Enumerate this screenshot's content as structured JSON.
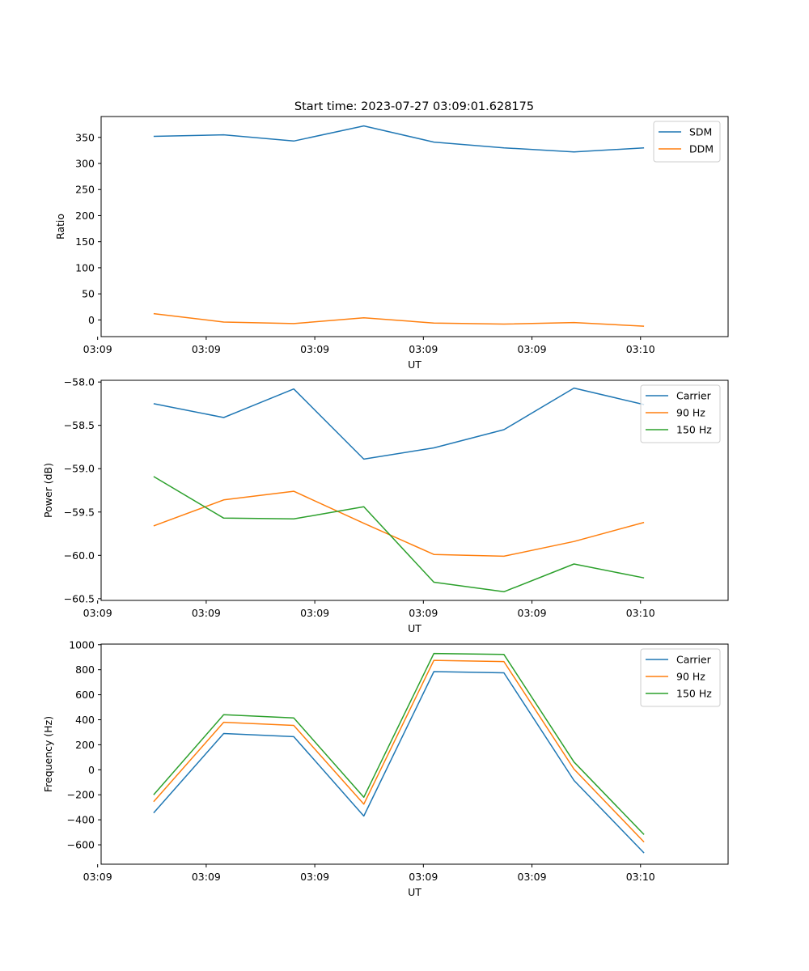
{
  "figure_title": "Start time: 2023-07-27 03:09:01.628175",
  "colors": {
    "c0": "#1f77b4",
    "c1": "#ff7f0e",
    "c2": "#2ca02c"
  },
  "chart_data": [
    {
      "type": "line",
      "title": "Start time: 2023-07-27 03:09:01.628175",
      "xlabel": "UT",
      "ylabel": "Ratio",
      "x": [
        1,
        2,
        3,
        4,
        5,
        6,
        7,
        8
      ],
      "xlim": [
        0.25,
        9.2
      ],
      "xticks": [
        {
          "v": 0.2,
          "label": "03:09"
        },
        {
          "v": 1.75,
          "label": "03:09"
        },
        {
          "v": 3.3,
          "label": "03:09"
        },
        {
          "v": 4.85,
          "label": "03:09"
        },
        {
          "v": 6.4,
          "label": "03:09"
        },
        {
          "v": 7.95,
          "label": "03:10"
        }
      ],
      "ylim": [
        -32,
        390
      ],
      "yticks": [
        {
          "v": 0,
          "label": "0"
        },
        {
          "v": 50,
          "label": "50"
        },
        {
          "v": 100,
          "label": "100"
        },
        {
          "v": 150,
          "label": "150"
        },
        {
          "v": 200,
          "label": "200"
        },
        {
          "v": 250,
          "label": "250"
        },
        {
          "v": 300,
          "label": "300"
        },
        {
          "v": 350,
          "label": "350"
        }
      ],
      "legend_position": "top-right",
      "series": [
        {
          "name": "SDM",
          "color": "#1f77b4",
          "values": [
            352,
            355,
            343,
            372,
            341,
            330,
            322,
            330
          ]
        },
        {
          "name": "DDM",
          "color": "#ff7f0e",
          "values": [
            12,
            -4,
            -7,
            4,
            -6,
            -8,
            -5,
            -12
          ]
        }
      ]
    },
    {
      "type": "line",
      "title": "",
      "xlabel": "UT",
      "ylabel": "Power (dB)",
      "x": [
        1,
        2,
        3,
        4,
        5,
        6,
        7,
        8
      ],
      "xlim": [
        0.25,
        9.2
      ],
      "xticks": [
        {
          "v": 0.2,
          "label": "03:09"
        },
        {
          "v": 1.75,
          "label": "03:09"
        },
        {
          "v": 3.3,
          "label": "03:09"
        },
        {
          "v": 4.85,
          "label": "03:09"
        },
        {
          "v": 6.4,
          "label": "03:09"
        },
        {
          "v": 7.95,
          "label": "03:10"
        }
      ],
      "ylim": [
        -60.52,
        -57.98
      ],
      "yticks": [
        {
          "v": -60.5,
          "label": "−60.5"
        },
        {
          "v": -60.0,
          "label": "−60.0"
        },
        {
          "v": -59.5,
          "label": "−59.5"
        },
        {
          "v": -59.0,
          "label": "−59.0"
        },
        {
          "v": -58.5,
          "label": "−58.5"
        },
        {
          "v": -58.0,
          "label": "−58.0"
        }
      ],
      "legend_position": "top-right",
      "series": [
        {
          "name": "Carrier",
          "color": "#1f77b4",
          "values": [
            -58.25,
            -58.41,
            -58.08,
            -58.89,
            -58.76,
            -58.55,
            -58.07,
            -58.26
          ]
        },
        {
          "name": "90 Hz",
          "color": "#ff7f0e",
          "values": [
            -59.66,
            -59.36,
            -59.26,
            -59.63,
            -59.99,
            -60.01,
            -59.84,
            -59.62
          ]
        },
        {
          "name": "150 Hz",
          "color": "#2ca02c",
          "values": [
            -59.09,
            -59.57,
            -59.58,
            -59.44,
            -60.31,
            -60.42,
            -60.1,
            -60.26
          ]
        }
      ]
    },
    {
      "type": "line",
      "title": "",
      "xlabel": "UT",
      "ylabel": "Frequency (Hz)",
      "x": [
        1,
        2,
        3,
        4,
        5,
        6,
        7,
        8
      ],
      "xlim": [
        0.25,
        9.2
      ],
      "xticks": [
        {
          "v": 0.2,
          "label": "03:09"
        },
        {
          "v": 1.75,
          "label": "03:09"
        },
        {
          "v": 3.3,
          "label": "03:09"
        },
        {
          "v": 4.85,
          "label": "03:09"
        },
        {
          "v": 6.4,
          "label": "03:09"
        },
        {
          "v": 7.95,
          "label": "03:10"
        }
      ],
      "ylim": [
        -755,
        1005
      ],
      "yticks": [
        {
          "v": -600,
          "label": "−600"
        },
        {
          "v": -400,
          "label": "−400"
        },
        {
          "v": -200,
          "label": "−200"
        },
        {
          "v": 0,
          "label": "0"
        },
        {
          "v": 200,
          "label": "200"
        },
        {
          "v": 400,
          "label": "400"
        },
        {
          "v": 600,
          "label": "600"
        },
        {
          "v": 800,
          "label": "800"
        },
        {
          "v": 1000,
          "label": "1000"
        }
      ],
      "legend_position": "top-right",
      "series": [
        {
          "name": "Carrier",
          "color": "#1f77b4",
          "values": [
            -345,
            290,
            265,
            -370,
            785,
            775,
            -85,
            -665
          ]
        },
        {
          "name": "90 Hz",
          "color": "#ff7f0e",
          "values": [
            -255,
            380,
            355,
            -275,
            875,
            865,
            5,
            -578
          ]
        },
        {
          "name": "150 Hz",
          "color": "#2ca02c",
          "values": [
            -200,
            440,
            415,
            -220,
            930,
            922,
            62,
            -518
          ]
        }
      ]
    }
  ]
}
